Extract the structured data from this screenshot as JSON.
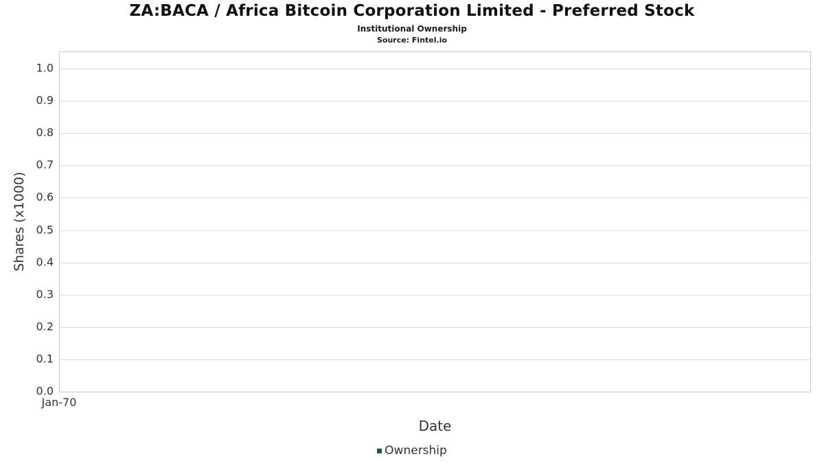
{
  "chart_data": {
    "type": "line",
    "title": "ZA:BACA / Africa Bitcoin Corporation Limited - Preferred Stock",
    "subtitle": "Institutional Ownership",
    "source": "Source: Fintel.io",
    "xlabel": "Date",
    "ylabel": "Shares (x1000)",
    "ylim": [
      0.0,
      1.0
    ],
    "y_tick_labels": [
      "0.0",
      "0.1",
      "0.2",
      "0.3",
      "0.4",
      "0.5",
      "0.6",
      "0.7",
      "0.8",
      "0.9",
      "1.0"
    ],
    "x_ticks": [
      "Jan-70"
    ],
    "grid": true,
    "legend_position": "bottom",
    "series": [
      {
        "name": "Ownership",
        "color": "#1e5b32",
        "x": [],
        "values": []
      }
    ],
    "legend": [
      {
        "label": "Ownership",
        "color": "#1e5b32"
      }
    ]
  }
}
